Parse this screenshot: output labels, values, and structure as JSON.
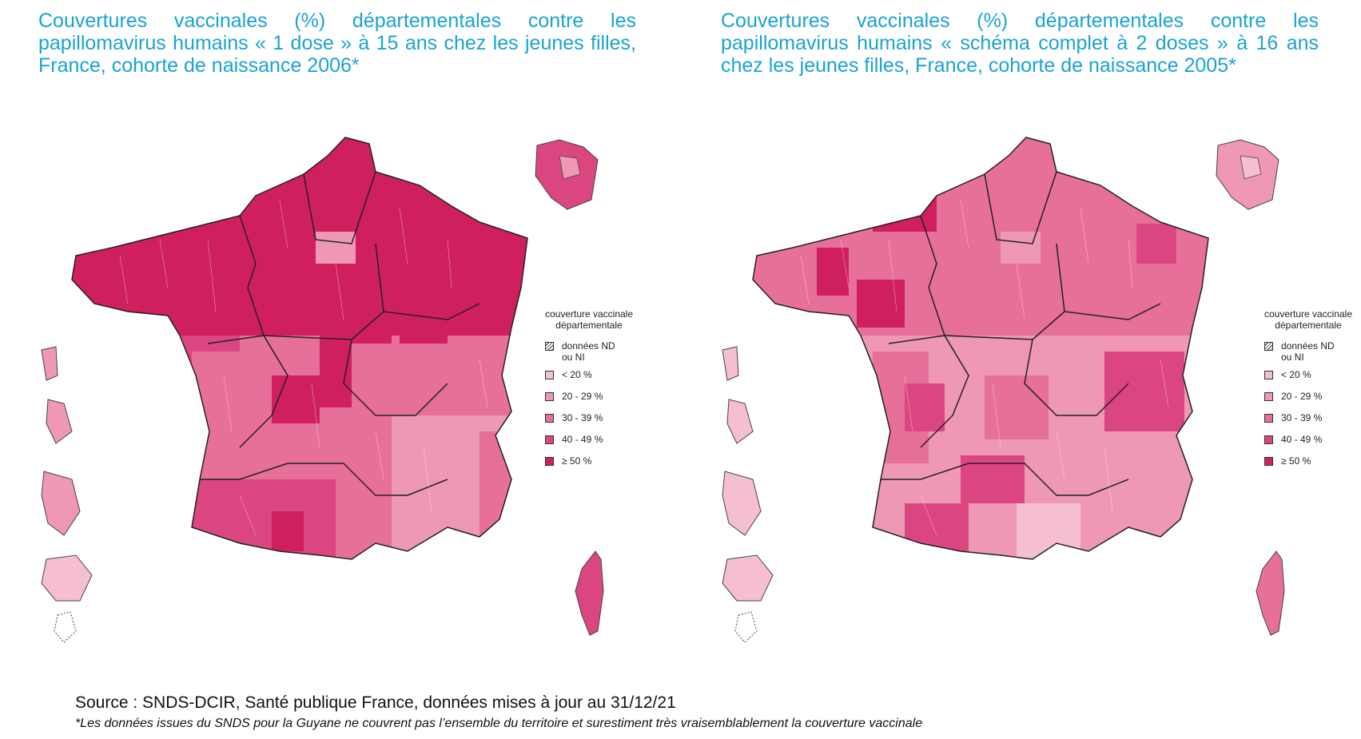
{
  "maps": [
    {
      "title": "Couvertures vaccinales (%) départementales contre les papillomavirus humains « 1 dose » à 15 ans chez les jeunes filles, France, cohorte de naissance 2006*",
      "legend_title": "couverture vaccinale départementale"
    },
    {
      "title": "Couvertures vaccinales (%) départementales contre les papillomavirus humains « schéma complet à 2 doses » à 16 ans chez les jeunes filles, France, cohorte de naissance 2005*",
      "legend_title": "couverture vaccinale départementale"
    }
  ],
  "legend": [
    {
      "label": "données ND\nou NI",
      "color": "#ffffff",
      "hatched": true
    },
    {
      "label": "< 20 %",
      "color": "#f5bfd0"
    },
    {
      "label": "20 - 29 %",
      "color": "#ee98b5"
    },
    {
      "label": "30 - 39 %",
      "color": "#e6709a"
    },
    {
      "label": "40 - 49 %",
      "color": "#dc4680"
    },
    {
      "label": "≥ 50 %",
      "color": "#d01f5f"
    }
  ],
  "source": "Source : SNDS-DCIR, Santé publique France, données mises à jour au 31/12/21",
  "note": "*Les données issues du SNDS pour la Guyane ne couvrent pas l’ensemble du territoire et surestiment très vraisemblablement la couverture vaccinale"
}
